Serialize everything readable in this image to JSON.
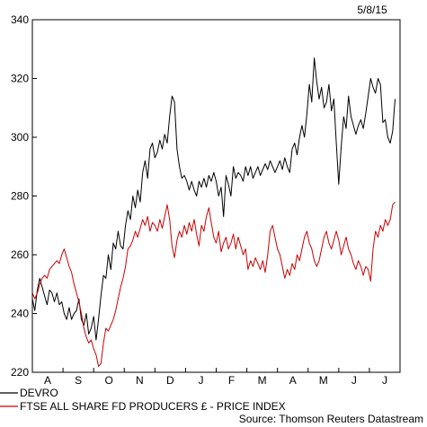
{
  "date_label": "5/8/15",
  "source": "Source: Thomson Reuters Datastream",
  "chart_data": {
    "type": "line",
    "y_ticks": [
      220,
      240,
      260,
      280,
      300,
      320,
      340
    ],
    "ylim": [
      220,
      340
    ],
    "x_ticks": [
      "A",
      "S",
      "O",
      "N",
      "D",
      "J",
      "F",
      "M",
      "A",
      "M",
      "J",
      "J"
    ],
    "x_range": [
      0,
      12
    ],
    "grid": false,
    "legend_position": "bottom-left",
    "series": [
      {
        "name": "DEVRO",
        "color": "#000000",
        "points": [
          [
            0.0,
            245
          ],
          [
            0.08,
            241
          ],
          [
            0.16,
            248
          ],
          [
            0.24,
            252
          ],
          [
            0.32,
            249
          ],
          [
            0.4,
            246
          ],
          [
            0.48,
            243
          ],
          [
            0.56,
            248
          ],
          [
            0.64,
            247
          ],
          [
            0.72,
            244
          ],
          [
            0.8,
            247
          ],
          [
            0.88,
            243
          ],
          [
            0.96,
            244
          ],
          [
            1.04,
            240
          ],
          [
            1.12,
            238
          ],
          [
            1.2,
            242
          ],
          [
            1.28,
            238
          ],
          [
            1.36,
            240
          ],
          [
            1.44,
            241
          ],
          [
            1.52,
            245
          ],
          [
            1.6,
            238
          ],
          [
            1.68,
            236
          ],
          [
            1.76,
            240
          ],
          [
            1.84,
            233
          ],
          [
            1.92,
            235
          ],
          [
            2.0,
            239
          ],
          [
            2.08,
            231
          ],
          [
            2.16,
            238
          ],
          [
            2.24,
            246
          ],
          [
            2.32,
            253
          ],
          [
            2.4,
            252
          ],
          [
            2.48,
            260
          ],
          [
            2.56,
            255
          ],
          [
            2.64,
            264
          ],
          [
            2.72,
            262
          ],
          [
            2.8,
            268
          ],
          [
            2.88,
            263
          ],
          [
            2.96,
            262
          ],
          [
            3.04,
            270
          ],
          [
            3.12,
            275
          ],
          [
            3.2,
            272
          ],
          [
            3.28,
            280
          ],
          [
            3.36,
            276
          ],
          [
            3.44,
            282
          ],
          [
            3.52,
            278
          ],
          [
            3.6,
            288
          ],
          [
            3.68,
            292
          ],
          [
            3.76,
            286
          ],
          [
            3.84,
            296
          ],
          [
            3.92,
            298
          ],
          [
            4.0,
            293
          ],
          [
            4.08,
            295
          ],
          [
            4.16,
            299
          ],
          [
            4.24,
            296
          ],
          [
            4.32,
            301
          ],
          [
            4.4,
            298
          ],
          [
            4.48,
            307
          ],
          [
            4.56,
            314
          ],
          [
            4.64,
            312
          ],
          [
            4.72,
            296
          ],
          [
            4.8,
            290
          ],
          [
            4.88,
            286
          ],
          [
            4.96,
            287
          ],
          [
            5.04,
            285
          ],
          [
            5.12,
            282
          ],
          [
            5.2,
            285
          ],
          [
            5.28,
            282
          ],
          [
            5.36,
            280
          ],
          [
            5.44,
            285
          ],
          [
            5.52,
            283
          ],
          [
            5.6,
            286
          ],
          [
            5.68,
            283
          ],
          [
            5.76,
            287
          ],
          [
            5.84,
            285
          ],
          [
            5.92,
            288
          ],
          [
            6.0,
            285
          ],
          [
            6.08,
            280
          ],
          [
            6.16,
            283
          ],
          [
            6.24,
            273
          ],
          [
            6.32,
            287
          ],
          [
            6.4,
            284
          ],
          [
            6.48,
            280
          ],
          [
            6.56,
            290
          ],
          [
            6.64,
            286
          ],
          [
            6.72,
            288
          ],
          [
            6.8,
            287
          ],
          [
            6.88,
            285
          ],
          [
            6.96,
            290
          ],
          [
            7.04,
            287
          ],
          [
            7.12,
            290
          ],
          [
            7.2,
            286
          ],
          [
            7.28,
            288
          ],
          [
            7.36,
            290
          ],
          [
            7.44,
            287
          ],
          [
            7.52,
            289
          ],
          [
            7.6,
            291
          ],
          [
            7.68,
            289
          ],
          [
            7.76,
            292
          ],
          [
            7.84,
            290
          ],
          [
            7.92,
            288
          ],
          [
            8.0,
            290
          ],
          [
            8.08,
            292
          ],
          [
            8.16,
            289
          ],
          [
            8.24,
            293
          ],
          [
            8.32,
            290
          ],
          [
            8.4,
            288
          ],
          [
            8.48,
            296
          ],
          [
            8.56,
            298
          ],
          [
            8.64,
            294
          ],
          [
            8.72,
            300
          ],
          [
            8.8,
            304
          ],
          [
            8.88,
            300
          ],
          [
            8.96,
            308
          ],
          [
            9.04,
            318
          ],
          [
            9.12,
            312
          ],
          [
            9.2,
            327
          ],
          [
            9.28,
            319
          ],
          [
            9.36,
            313
          ],
          [
            9.44,
            317
          ],
          [
            9.52,
            310
          ],
          [
            9.6,
            312
          ],
          [
            9.68,
            318
          ],
          [
            9.76,
            309
          ],
          [
            9.84,
            313
          ],
          [
            9.92,
            298
          ],
          [
            10.0,
            284
          ],
          [
            10.08,
            297
          ],
          [
            10.16,
            307
          ],
          [
            10.24,
            303
          ],
          [
            10.32,
            314
          ],
          [
            10.4,
            307
          ],
          [
            10.48,
            304
          ],
          [
            10.56,
            301
          ],
          [
            10.64,
            304
          ],
          [
            10.72,
            306
          ],
          [
            10.8,
            303
          ],
          [
            10.88,
            308
          ],
          [
            10.96,
            314
          ],
          [
            11.04,
            320
          ],
          [
            11.12,
            317
          ],
          [
            11.2,
            315
          ],
          [
            11.28,
            320
          ],
          [
            11.36,
            318
          ],
          [
            11.44,
            305
          ],
          [
            11.52,
            306
          ],
          [
            11.6,
            300
          ],
          [
            11.68,
            298
          ],
          [
            11.76,
            302
          ],
          [
            11.84,
            313
          ]
        ]
      },
      {
        "name": "FTSE ALL SHARE FD PRODUCERS £ - PRICE INDEX",
        "color": "#cc0000",
        "points": [
          [
            0.0,
            247
          ],
          [
            0.08,
            245
          ],
          [
            0.16,
            247
          ],
          [
            0.24,
            250
          ],
          [
            0.32,
            252
          ],
          [
            0.4,
            253
          ],
          [
            0.48,
            252
          ],
          [
            0.56,
            255
          ],
          [
            0.64,
            256
          ],
          [
            0.72,
            257
          ],
          [
            0.8,
            258
          ],
          [
            0.88,
            257
          ],
          [
            0.96,
            260
          ],
          [
            1.04,
            262
          ],
          [
            1.12,
            259
          ],
          [
            1.2,
            256
          ],
          [
            1.28,
            254
          ],
          [
            1.36,
            250
          ],
          [
            1.44,
            247
          ],
          [
            1.52,
            244
          ],
          [
            1.6,
            240
          ],
          [
            1.68,
            235
          ],
          [
            1.76,
            232
          ],
          [
            1.84,
            230
          ],
          [
            1.92,
            231
          ],
          [
            2.0,
            228
          ],
          [
            2.08,
            226
          ],
          [
            2.16,
            222
          ],
          [
            2.24,
            223
          ],
          [
            2.32,
            230
          ],
          [
            2.4,
            235
          ],
          [
            2.48,
            234
          ],
          [
            2.56,
            236
          ],
          [
            2.64,
            238
          ],
          [
            2.72,
            241
          ],
          [
            2.8,
            245
          ],
          [
            2.88,
            249
          ],
          [
            2.96,
            252
          ],
          [
            3.04,
            256
          ],
          [
            3.12,
            262
          ],
          [
            3.2,
            263
          ],
          [
            3.28,
            265
          ],
          [
            3.36,
            268
          ],
          [
            3.44,
            266
          ],
          [
            3.52,
            269
          ],
          [
            3.6,
            272
          ],
          [
            3.68,
            270
          ],
          [
            3.76,
            273
          ],
          [
            3.84,
            268
          ],
          [
            3.92,
            271
          ],
          [
            4.0,
            270
          ],
          [
            4.08,
            268
          ],
          [
            4.16,
            272
          ],
          [
            4.24,
            269
          ],
          [
            4.32,
            273
          ],
          [
            4.4,
            277
          ],
          [
            4.48,
            272
          ],
          [
            4.56,
            263
          ],
          [
            4.64,
            259
          ],
          [
            4.72,
            265
          ],
          [
            4.8,
            268
          ],
          [
            4.88,
            266
          ],
          [
            4.96,
            270
          ],
          [
            5.04,
            267
          ],
          [
            5.12,
            271
          ],
          [
            5.2,
            268
          ],
          [
            5.28,
            272
          ],
          [
            5.36,
            267
          ],
          [
            5.44,
            263
          ],
          [
            5.52,
            270
          ],
          [
            5.6,
            268
          ],
          [
            5.68,
            273
          ],
          [
            5.76,
            276
          ],
          [
            5.84,
            271
          ],
          [
            5.92,
            266
          ],
          [
            6.0,
            264
          ],
          [
            6.08,
            268
          ],
          [
            6.16,
            261
          ],
          [
            6.24,
            264
          ],
          [
            6.32,
            266
          ],
          [
            6.4,
            262
          ],
          [
            6.48,
            264
          ],
          [
            6.56,
            267
          ],
          [
            6.64,
            262
          ],
          [
            6.72,
            266
          ],
          [
            6.8,
            263
          ],
          [
            6.88,
            260
          ],
          [
            6.96,
            262
          ],
          [
            7.04,
            255
          ],
          [
            7.12,
            258
          ],
          [
            7.2,
            256
          ],
          [
            7.28,
            259
          ],
          [
            7.36,
            257
          ],
          [
            7.44,
            255
          ],
          [
            7.52,
            258
          ],
          [
            7.6,
            254
          ],
          [
            7.68,
            260
          ],
          [
            7.76,
            268
          ],
          [
            7.84,
            270
          ],
          [
            7.92,
            266
          ],
          [
            8.0,
            262
          ],
          [
            8.08,
            260
          ],
          [
            8.16,
            256
          ],
          [
            8.24,
            252
          ],
          [
            8.32,
            255
          ],
          [
            8.4,
            253
          ],
          [
            8.48,
            257
          ],
          [
            8.56,
            255
          ],
          [
            8.64,
            260
          ],
          [
            8.72,
            258
          ],
          [
            8.8,
            262
          ],
          [
            8.88,
            266
          ],
          [
            8.96,
            268
          ],
          [
            9.04,
            264
          ],
          [
            9.12,
            262
          ],
          [
            9.2,
            258
          ],
          [
            9.28,
            256
          ],
          [
            9.36,
            258
          ],
          [
            9.44,
            262
          ],
          [
            9.52,
            266
          ],
          [
            9.6,
            268
          ],
          [
            9.68,
            264
          ],
          [
            9.76,
            262
          ],
          [
            9.84,
            265
          ],
          [
            9.92,
            268
          ],
          [
            10.0,
            265
          ],
          [
            10.08,
            260
          ],
          [
            10.16,
            263
          ],
          [
            10.24,
            266
          ],
          [
            10.32,
            262
          ],
          [
            10.4,
            260
          ],
          [
            10.48,
            257
          ],
          [
            10.56,
            255
          ],
          [
            10.64,
            258
          ],
          [
            10.72,
            256
          ],
          [
            10.8,
            253
          ],
          [
            10.88,
            256
          ],
          [
            10.96,
            255
          ],
          [
            11.04,
            251
          ],
          [
            11.12,
            262
          ],
          [
            11.2,
            268
          ],
          [
            11.28,
            266
          ],
          [
            11.36,
            270
          ],
          [
            11.44,
            268
          ],
          [
            11.52,
            272
          ],
          [
            11.6,
            270
          ],
          [
            11.68,
            272
          ],
          [
            11.76,
            277
          ],
          [
            11.84,
            278
          ]
        ]
      }
    ]
  }
}
